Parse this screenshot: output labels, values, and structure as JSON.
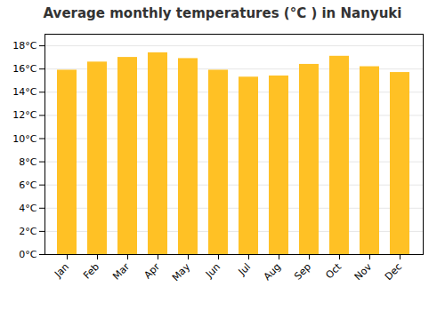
{
  "chart_data": {
    "type": "bar",
    "title": "Average monthly temperatures (°C ) in Nanyuki",
    "categories": [
      "Jan",
      "Feb",
      "Mar",
      "Apr",
      "May",
      "Jun",
      "Jul",
      "Aug",
      "Sep",
      "Oct",
      "Nov",
      "Dec"
    ],
    "values": [
      15.9,
      16.6,
      17.0,
      17.4,
      16.9,
      15.9,
      15.3,
      15.4,
      16.4,
      17.1,
      16.2,
      15.7
    ],
    "color": "#FFC125",
    "ylim": [
      0,
      19
    ],
    "yticks": [
      {
        "value": 0,
        "label": "0°C"
      },
      {
        "value": 2,
        "label": "2°C"
      },
      {
        "value": 4,
        "label": "4°C"
      },
      {
        "value": 6,
        "label": "6°C"
      },
      {
        "value": 8,
        "label": "8°C"
      },
      {
        "value": 10,
        "label": "10°C"
      },
      {
        "value": 12,
        "label": "12°C"
      },
      {
        "value": 14,
        "label": "14°C"
      },
      {
        "value": 16,
        "label": "16°C"
      },
      {
        "value": 18,
        "label": "18°C"
      }
    ],
    "grid": true
  }
}
